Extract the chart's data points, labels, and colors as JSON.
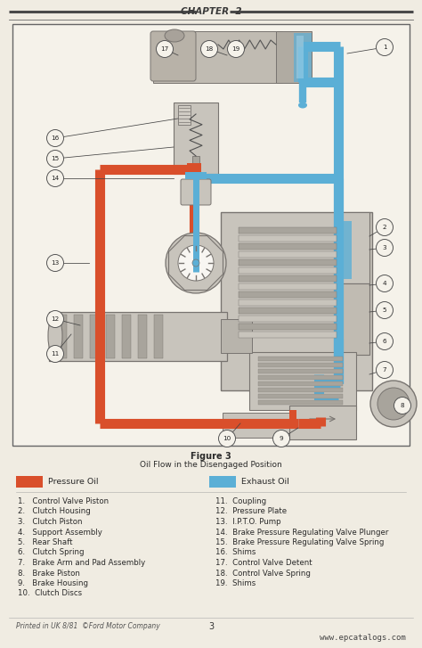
{
  "page_bg": "#f0ece2",
  "diagram_bg": "#f5f2ea",
  "header_text": "CHAPTER  2",
  "figure_caption_bold": "Figure 3",
  "figure_caption": "Oil Flow in the Disengaged Position",
  "legend_pressure": "Pressure Oil",
  "legend_exhaust": "Exhaust Oil",
  "pressure_color": "#d94f2b",
  "exhaust_color": "#5bafd6",
  "gray_light": "#c8c4bc",
  "gray_mid": "#a8a49c",
  "gray_dark": "#787470",
  "white": "#f8f6f2",
  "footer_left": "Printed in UK 8/81  ©Ford Motor Company",
  "footer_center": "3",
  "footer_right": "www.epcatalogs.com",
  "items_left": [
    "1.   Control Valve Piston",
    "2.   Clutch Housing",
    "3.   Clutch Piston",
    "4.   Support Assembly",
    "5.   Rear Shaft",
    "6.   Clutch Spring",
    "7.   Brake Arm and Pad Assembly",
    "8.   Brake Piston",
    "9.   Brake Housing",
    "10.  Clutch Discs"
  ],
  "items_right": [
    "11.  Coupling",
    "12.  Pressure Plate",
    "13.  I.P.T.O. Pump",
    "14.  Brake Pressure Regulating Valve Plunger",
    "15.  Brake Pressure Regulating Valve Spring",
    "16.  Shims",
    "17.  Control Valve Detent",
    "18.  Control Valve Spring",
    "19.  Shims"
  ],
  "header_fontsize": 7.5,
  "caption_fontsize": 7.0,
  "caption_sub_fontsize": 6.5,
  "legend_fontsize": 6.8,
  "list_fontsize": 6.2,
  "footer_fontsize": 5.5
}
